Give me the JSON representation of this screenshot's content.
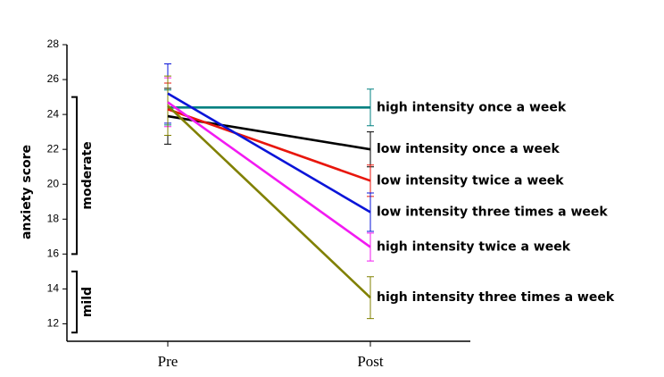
{
  "chart_data": {
    "type": "line",
    "y_label": "anxiety score",
    "categories": [
      "Pre",
      "Post"
    ],
    "ylim": [
      11,
      28
    ],
    "yticks": [
      12,
      14,
      16,
      18,
      20,
      22,
      24,
      26,
      28
    ],
    "bands": [
      {
        "label": "moderate",
        "range": [
          16,
          25
        ]
      },
      {
        "label": "mild",
        "range": [
          11.5,
          15
        ]
      }
    ],
    "series": [
      {
        "name": "high intensity once a week",
        "color": "#008080",
        "values": [
          24.4,
          24.4
        ],
        "errors": [
          1.0,
          1.05
        ]
      },
      {
        "name": "low intensity once a week",
        "color": "#000000",
        "values": [
          23.9,
          22.0
        ],
        "errors": [
          1.6,
          1.0
        ]
      },
      {
        "name": "low intensity twice a week",
        "color": "#e8160c",
        "values": [
          24.3,
          20.2
        ],
        "errors": [
          1.5,
          0.9
        ]
      },
      {
        "name": "low intensity three times a week",
        "color": "#0a14d8",
        "values": [
          25.2,
          18.4
        ],
        "errors": [
          1.7,
          1.1
        ]
      },
      {
        "name": "high intensity twice a week",
        "color": "#f21af2",
        "values": [
          24.7,
          16.4
        ],
        "errors": [
          1.4,
          0.8
        ]
      },
      {
        "name": "high intensity three times a week",
        "color": "#808000",
        "values": [
          24.5,
          13.5
        ],
        "errors": [
          1.7,
          1.2
        ]
      }
    ]
  }
}
